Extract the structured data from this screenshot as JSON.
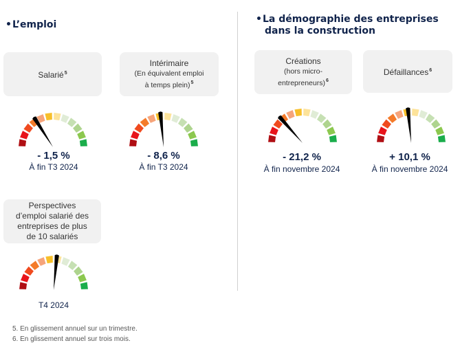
{
  "sections": {
    "emploi": {
      "title": "L’emploi"
    },
    "demographie": {
      "title_line1": "La démographie des entreprises",
      "title_line2": "dans la construction"
    }
  },
  "bullet": "•",
  "gauge_colors": [
    "#b00f14",
    "#e8141b",
    "#f04a1e",
    "#f47b2a",
    "#f6a47a",
    "#f7bf2a",
    "#fde39a",
    "#e0ecd6",
    "#c6e0b3",
    "#aed48e",
    "#8cc84f",
    "#1aad4b"
  ],
  "needle_color": "#000000",
  "indicators": [
    {
      "id": "salarie",
      "label": "Salarié",
      "footnote_ref": "5",
      "value": "- 1,5 %",
      "period": "À fin T3 2024",
      "needle_position": 0.32
    },
    {
      "id": "interim",
      "label": "Intérimaire",
      "sublabel_line1": "(En équivalent emploi",
      "sublabel_line2": "à temps plein)",
      "footnote_ref": "5",
      "value": "- 8,6 %",
      "period": "À fin T3 2024",
      "needle_position": 0.47
    },
    {
      "id": "creations",
      "label": "Créations",
      "sublabel_line1": "(hors micro-",
      "sublabel_line2": "entrepreneurs)",
      "footnote_ref": "6",
      "value": "- 21,2 %",
      "period": "À fin novembre 2024",
      "needle_position": 0.27
    },
    {
      "id": "defaillances",
      "label": "Défaillances",
      "footnote_ref": "6",
      "value": "+ 10,1 %",
      "period": "À fin novembre 2024",
      "needle_position": 0.47
    },
    {
      "id": "perspectives",
      "label_line1": "Perspectives",
      "label_line2": "d’emploi salarié des",
      "label_line3": "entreprises de plus",
      "label_line4": "de 10 salariés",
      "value": "",
      "period": "T4 2024",
      "needle_position": 0.53
    }
  ],
  "footnotes": [
    "5. En glissement annuel sur un trimestre.",
    "6. En glissement annuel sur trois mois."
  ]
}
